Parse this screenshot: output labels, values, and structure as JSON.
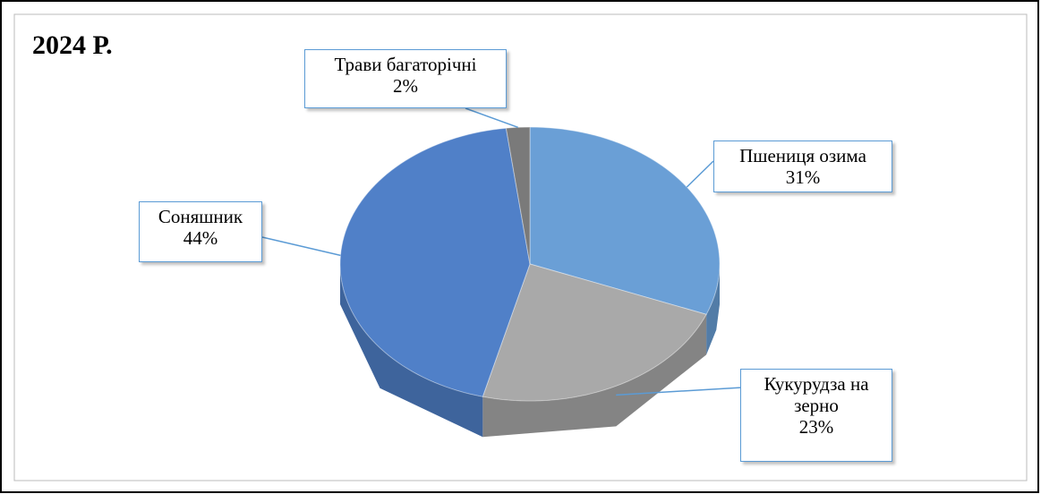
{
  "chart_data": {
    "type": "pie",
    "title": "2024 Р.",
    "categories": [
      "Пшениця озима",
      "Кукурудза на зерно",
      "Соняшник",
      "Трави багаторічні"
    ],
    "values": [
      31,
      23,
      44,
      2
    ],
    "value_labels": [
      "31%",
      "23%",
      "44%",
      "2%"
    ],
    "colors": [
      "#6a9fd6",
      "#a9a9a9",
      "#5080c8",
      "#7a7a7a"
    ]
  }
}
